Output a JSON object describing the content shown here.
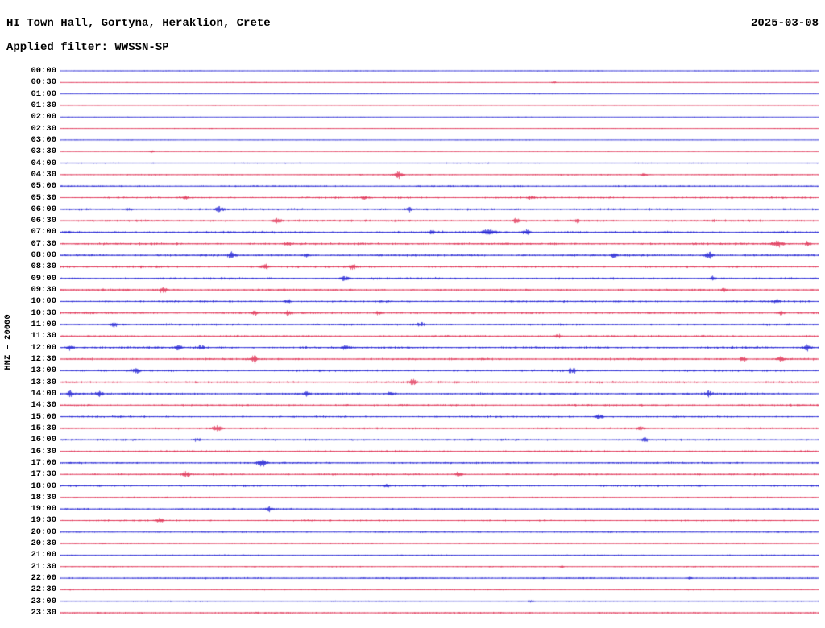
{
  "header": {
    "station_title": "HI Town Hall, Gortyna, Heraklion, Crete",
    "date": "2025-03-08",
    "filter_label": "Applied filter: WWSSN-SP"
  },
  "axis": {
    "channel_scale_label": "HNZ – 20000"
  },
  "colors": {
    "blue": "#0000cd",
    "red": "#dc143c",
    "background": "#ffffff",
    "text": "#000000"
  },
  "chart_data": {
    "type": "line",
    "subtype": "helicorder",
    "title": "HI Town Hall, Gortyna, Heraklion, Crete",
    "date": "2025-03-08",
    "filter": "WWSSN-SP",
    "channel": "HNZ",
    "gain_scale": "20000",
    "minutes_per_row": 30,
    "legend": "none",
    "grid": "off",
    "events_encoding": "[position_fraction_of_row, amplitude_px, half_width_px]",
    "rows": [
      {
        "time": "00:00",
        "color": "blue",
        "noise": 0.35,
        "events": []
      },
      {
        "time": "00:30",
        "color": "red",
        "noise": 0.35,
        "events": [
          [
            0.65,
            1.3,
            3
          ]
        ]
      },
      {
        "time": "01:00",
        "color": "blue",
        "noise": 0.3,
        "events": []
      },
      {
        "time": "01:30",
        "color": "red",
        "noise": 0.3,
        "events": []
      },
      {
        "time": "02:00",
        "color": "blue",
        "noise": 0.3,
        "events": []
      },
      {
        "time": "02:30",
        "color": "red",
        "noise": 0.35,
        "events": []
      },
      {
        "time": "03:00",
        "color": "blue",
        "noise": 0.3,
        "events": []
      },
      {
        "time": "03:30",
        "color": "red",
        "noise": 0.35,
        "events": [
          [
            0.12,
            1.2,
            3
          ]
        ]
      },
      {
        "time": "04:00",
        "color": "blue",
        "noise": 0.5,
        "events": []
      },
      {
        "time": "04:30",
        "color": "red",
        "noise": 0.55,
        "events": [
          [
            0.445,
            3.8,
            5
          ],
          [
            0.77,
            1.5,
            4
          ]
        ]
      },
      {
        "time": "05:00",
        "color": "blue",
        "noise": 0.65,
        "events": []
      },
      {
        "time": "05:30",
        "color": "red",
        "noise": 0.8,
        "events": [
          [
            0.165,
            1.6,
            4
          ],
          [
            0.4,
            1.6,
            4
          ],
          [
            0.62,
            1.4,
            4
          ]
        ]
      },
      {
        "time": "06:00",
        "color": "blue",
        "noise": 0.9,
        "events": [
          [
            0.09,
            1.5,
            4
          ],
          [
            0.21,
            2.4,
            5
          ],
          [
            0.46,
            1.8,
            4
          ]
        ]
      },
      {
        "time": "06:30",
        "color": "red",
        "noise": 0.95,
        "events": [
          [
            0.285,
            2.4,
            5
          ],
          [
            0.6,
            2.0,
            4
          ],
          [
            0.68,
            1.8,
            4
          ]
        ]
      },
      {
        "time": "07:00",
        "color": "blue",
        "noise": 0.95,
        "events": [
          [
            0.49,
            2.2,
            4
          ],
          [
            0.565,
            3.2,
            8
          ],
          [
            0.615,
            2.6,
            5
          ]
        ]
      },
      {
        "time": "07:30",
        "color": "red",
        "noise": 0.95,
        "events": [
          [
            0.3,
            1.8,
            4
          ],
          [
            0.945,
            3.2,
            7
          ],
          [
            0.985,
            2.4,
            4
          ]
        ]
      },
      {
        "time": "08:00",
        "color": "blue",
        "noise": 0.95,
        "events": [
          [
            0.225,
            2.8,
            4
          ],
          [
            0.325,
            1.8,
            4
          ],
          [
            0.73,
            2.4,
            4
          ],
          [
            0.855,
            3.2,
            5
          ]
        ]
      },
      {
        "time": "08:30",
        "color": "red",
        "noise": 0.9,
        "events": [
          [
            0.27,
            2.4,
            5
          ],
          [
            0.385,
            2.4,
            5
          ]
        ]
      },
      {
        "time": "09:00",
        "color": "blue",
        "noise": 0.9,
        "events": [
          [
            0.375,
            2.4,
            5
          ],
          [
            0.86,
            1.8,
            4
          ]
        ]
      },
      {
        "time": "09:30",
        "color": "red",
        "noise": 0.9,
        "events": [
          [
            0.135,
            3.4,
            4
          ],
          [
            0.875,
            1.8,
            4
          ]
        ]
      },
      {
        "time": "10:00",
        "color": "blue",
        "noise": 0.85,
        "events": [
          [
            0.3,
            1.8,
            4
          ],
          [
            0.945,
            2.0,
            4
          ]
        ]
      },
      {
        "time": "10:30",
        "color": "red",
        "noise": 0.9,
        "events": [
          [
            0.255,
            2.4,
            4
          ],
          [
            0.3,
            2.2,
            4
          ],
          [
            0.42,
            2.0,
            4
          ],
          [
            0.95,
            1.8,
            4
          ]
        ]
      },
      {
        "time": "11:00",
        "color": "blue",
        "noise": 0.9,
        "events": [
          [
            0.07,
            2.2,
            5
          ],
          [
            0.475,
            1.8,
            4
          ]
        ]
      },
      {
        "time": "11:30",
        "color": "red",
        "noise": 0.85,
        "events": [
          [
            0.655,
            1.8,
            4
          ]
        ]
      },
      {
        "time": "12:00",
        "color": "blue",
        "noise": 0.95,
        "events": [
          [
            0.012,
            2.4,
            4
          ],
          [
            0.155,
            2.4,
            4
          ],
          [
            0.185,
            2.0,
            4
          ],
          [
            0.375,
            2.2,
            4
          ],
          [
            0.985,
            2.6,
            5
          ]
        ]
      },
      {
        "time": "12:30",
        "color": "red",
        "noise": 0.9,
        "events": [
          [
            0.255,
            3.4,
            4
          ],
          [
            0.9,
            2.2,
            4
          ],
          [
            0.95,
            2.6,
            4
          ]
        ]
      },
      {
        "time": "13:00",
        "color": "blue",
        "noise": 0.9,
        "events": [
          [
            0.1,
            2.4,
            4
          ],
          [
            0.675,
            2.6,
            5
          ]
        ]
      },
      {
        "time": "13:30",
        "color": "red",
        "noise": 0.9,
        "events": [
          [
            0.465,
            2.4,
            5
          ]
        ]
      },
      {
        "time": "14:00",
        "color": "blue",
        "noise": 0.9,
        "events": [
          [
            0.012,
            4.5,
            3
          ],
          [
            0.05,
            2.4,
            4
          ],
          [
            0.325,
            2.2,
            4
          ],
          [
            0.435,
            2.0,
            4
          ],
          [
            0.855,
            2.4,
            4
          ]
        ]
      },
      {
        "time": "14:30",
        "color": "red",
        "noise": 0.8,
        "events": []
      },
      {
        "time": "15:00",
        "color": "blue",
        "noise": 0.8,
        "events": [
          [
            0.71,
            3.0,
            5
          ]
        ]
      },
      {
        "time": "15:30",
        "color": "red",
        "noise": 0.8,
        "events": [
          [
            0.205,
            2.6,
            6
          ],
          [
            0.765,
            2.4,
            4
          ]
        ]
      },
      {
        "time": "16:00",
        "color": "blue",
        "noise": 0.8,
        "events": [
          [
            0.18,
            2.0,
            4
          ],
          [
            0.77,
            2.4,
            4
          ]
        ]
      },
      {
        "time": "16:30",
        "color": "red",
        "noise": 0.8,
        "events": []
      },
      {
        "time": "17:00",
        "color": "blue",
        "noise": 0.8,
        "events": [
          [
            0.265,
            3.2,
            6
          ]
        ]
      },
      {
        "time": "17:30",
        "color": "red",
        "noise": 0.8,
        "events": [
          [
            0.165,
            2.8,
            5
          ],
          [
            0.525,
            2.6,
            4
          ]
        ]
      },
      {
        "time": "18:00",
        "color": "blue",
        "noise": 0.8,
        "events": [
          [
            0.43,
            2.0,
            4
          ]
        ]
      },
      {
        "time": "18:30",
        "color": "red",
        "noise": 0.65,
        "events": []
      },
      {
        "time": "19:00",
        "color": "blue",
        "noise": 0.7,
        "events": [
          [
            0.275,
            2.6,
            4
          ]
        ]
      },
      {
        "time": "19:30",
        "color": "red",
        "noise": 0.7,
        "events": [
          [
            0.13,
            2.4,
            5
          ]
        ]
      },
      {
        "time": "20:00",
        "color": "blue",
        "noise": 0.6,
        "events": []
      },
      {
        "time": "20:30",
        "color": "red",
        "noise": 0.55,
        "events": []
      },
      {
        "time": "21:00",
        "color": "blue",
        "noise": 0.5,
        "events": []
      },
      {
        "time": "21:30",
        "color": "red",
        "noise": 0.5,
        "events": [
          [
            0.66,
            1.2,
            3
          ]
        ]
      },
      {
        "time": "22:00",
        "color": "blue",
        "noise": 0.7,
        "events": [
          [
            0.83,
            1.4,
            3
          ]
        ]
      },
      {
        "time": "22:30",
        "color": "red",
        "noise": 0.5,
        "events": []
      },
      {
        "time": "23:00",
        "color": "blue",
        "noise": 0.5,
        "events": [
          [
            0.62,
            1.2,
            3
          ]
        ]
      },
      {
        "time": "23:30",
        "color": "red",
        "noise": 0.7,
        "events": []
      }
    ]
  }
}
